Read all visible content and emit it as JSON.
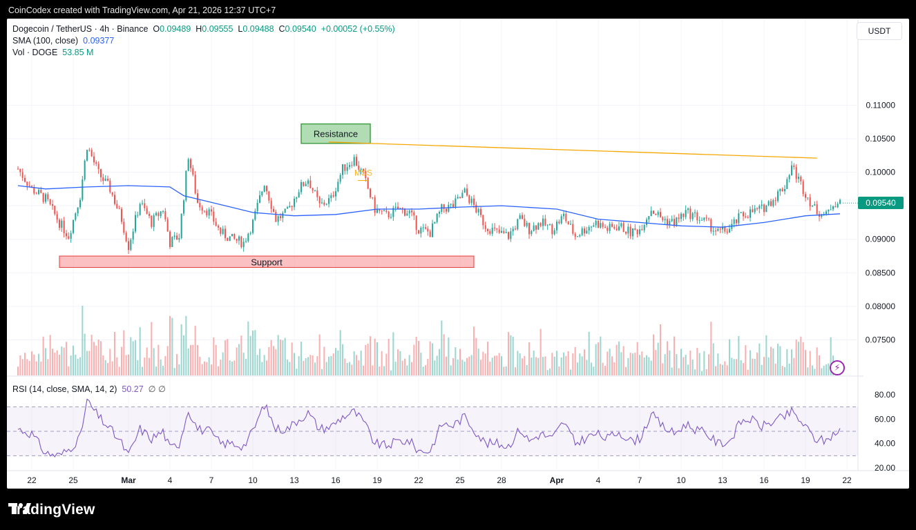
{
  "caption": "CoinCodex created with TradingView.com, Apr 21, 2026 12:37 UTC+7",
  "legend": {
    "symbol": "Dogecoin / TetherUS · 4h · Binance",
    "o_label": "O",
    "o": "0.09489",
    "h_label": "H",
    "h": "0.09555",
    "l_label": "L",
    "l": "0.09488",
    "c_label": "C",
    "c": "0.09540",
    "change": "+0.00052 (+0.55%)",
    "sma_label": "SMA (100, close)",
    "sma_value": "0.09377",
    "vol_label": "Vol · DOGE",
    "vol_value": "53.85 M",
    "rsi_label": "RSI (14, close, SMA, 14, 2)",
    "rsi_value": "50.27",
    "rsi_icons": "∅ ∅"
  },
  "currency": "USDT",
  "last_price_tag": "0.09540",
  "annotations": {
    "resistance": "Resistance",
    "support": "Support",
    "mss": "MSS"
  },
  "footer": {
    "brand": "TradingView"
  },
  "icons": {
    "bolt": "lightning-icon",
    "logo": "tradingview-logo-icon"
  },
  "colors": {
    "up": "#26a69a",
    "down": "#ef5350",
    "sma": "#2962ff",
    "rsi": "#7e57c2",
    "resistance_line": "#f7a600",
    "resistance_box": "#a5d6a7",
    "support_box": "#f8a5a8"
  },
  "chart_data": [
    {
      "type": "candlestick",
      "title": "Dogecoin / TetherUS · 4h · Binance",
      "y_axis": {
        "ticks": [
          0.075,
          0.08,
          0.085,
          0.09,
          0.095,
          0.1,
          0.105,
          0.11
        ],
        "tick_labels": [
          "0.07500",
          "0.08000",
          "0.08500",
          "0.09000",
          "0.09500",
          "0.10000",
          "0.10500",
          "0.11000"
        ],
        "range": [
          0.0732,
          0.1158
        ]
      },
      "x_axis": {
        "tick_labels": [
          "22",
          "25",
          "Mar",
          "4",
          "7",
          "10",
          "13",
          "16",
          "19",
          "22",
          "25",
          "28",
          "Apr",
          "4",
          "7",
          "10",
          "13",
          "16",
          "19",
          "22"
        ],
        "tick_dates": [
          "Feb 22",
          "Feb 25",
          "Mar 1",
          "Mar 4",
          "Mar 7",
          "Mar 10",
          "Mar 13",
          "Mar 16",
          "Mar 19",
          "Mar 22",
          "Mar 25",
          "Mar 28",
          "Apr 1",
          "Apr 4",
          "Apr 7",
          "Apr 10",
          "Apr 13",
          "Apr 16",
          "Apr 19",
          "Apr 22"
        ]
      },
      "close_path": [
        [
          "Feb 21 00:00",
          0.1005
        ],
        [
          "Feb 22 00:00",
          0.0975
        ],
        [
          "Feb 23 00:00",
          0.096
        ],
        [
          "Feb 24 00:00",
          0.0925
        ],
        [
          "Feb 24 16:00",
          0.0905
        ],
        [
          "Feb 25 12:00",
          0.0965
        ],
        [
          "Feb 26 00:00",
          0.104
        ],
        [
          "Feb 26 20:00",
          0.0998
        ],
        [
          "Feb 27 16:00",
          0.0975
        ],
        [
          "Feb 28 12:00",
          0.093
        ],
        [
          "Mar 1 00:00",
          0.089
        ],
        [
          "Mar 1 20:00",
          0.0955
        ],
        [
          "Mar 2 16:00",
          0.0925
        ],
        [
          "Mar 3 12:00",
          0.0945
        ],
        [
          "Mar 4 00:00",
          0.0895
        ],
        [
          "Mar 4 16:00",
          0.0905
        ],
        [
          "Mar 5 08:00",
          0.1025
        ],
        [
          "Mar 6 00:00",
          0.0955
        ],
        [
          "Mar 6 20:00",
          0.094
        ],
        [
          "Mar 7 16:00",
          0.091
        ],
        [
          "Mar 8 12:00",
          0.09
        ],
        [
          "Mar 9 08:00",
          0.0895
        ],
        [
          "Mar 10 00:00",
          0.0925
        ],
        [
          "Mar 10 20:00",
          0.0985
        ],
        [
          "Mar 11 16:00",
          0.093
        ],
        [
          "Mar 12 12:00",
          0.094
        ],
        [
          "Mar 13 08:00",
          0.0975
        ],
        [
          "Mar 14 00:00",
          0.099
        ],
        [
          "Mar 14 20:00",
          0.095
        ],
        [
          "Mar 15 16:00",
          0.096
        ],
        [
          "Mar 16 12:00",
          0.1005
        ],
        [
          "Mar 17 08:00",
          0.102
        ],
        [
          "Mar 18 00:00",
          0.0995
        ],
        [
          "Mar 18 20:00",
          0.0945
        ],
        [
          "Mar 19 16:00",
          0.0935
        ],
        [
          "Mar 20 12:00",
          0.0945
        ],
        [
          "Mar 21 08:00",
          0.094
        ],
        [
          "Mar 22 00:00",
          0.0915
        ],
        [
          "Mar 22 20:00",
          0.091
        ],
        [
          "Mar 23 16:00",
          0.0945
        ],
        [
          "Mar 24 12:00",
          0.095
        ],
        [
          "Mar 25 08:00",
          0.097
        ],
        [
          "Mar 26 00:00",
          0.095
        ],
        [
          "Mar 26 20:00",
          0.092
        ],
        [
          "Mar 27 16:00",
          0.091
        ],
        [
          "Mar 28 12:00",
          0.0905
        ],
        [
          "Mar 29 08:00",
          0.093
        ],
        [
          "Mar 30 00:00",
          0.0915
        ],
        [
          "Mar 30 20:00",
          0.0925
        ],
        [
          "Mar 31 16:00",
          0.0915
        ],
        [
          "Apr 1 12:00",
          0.0935
        ],
        [
          "Apr 2 08:00",
          0.0905
        ],
        [
          "Apr 3 00:00",
          0.0915
        ],
        [
          "Apr 3 20:00",
          0.0925
        ],
        [
          "Apr 4 16:00",
          0.0915
        ],
        [
          "Apr 5 12:00",
          0.092
        ],
        [
          "Apr 6 08:00",
          0.091
        ],
        [
          "Apr 7 00:00",
          0.0915
        ],
        [
          "Apr 7 20:00",
          0.0945
        ],
        [
          "Apr 8 16:00",
          0.093
        ],
        [
          "Apr 9 12:00",
          0.0925
        ],
        [
          "Apr 10 08:00",
          0.094
        ],
        [
          "Apr 11 00:00",
          0.0935
        ],
        [
          "Apr 11 20:00",
          0.0925
        ],
        [
          "Apr 12 16:00",
          0.091
        ],
        [
          "Apr 13 12:00",
          0.0915
        ],
        [
          "Apr 14 08:00",
          0.0935
        ],
        [
          "Apr 15 00:00",
          0.094
        ],
        [
          "Apr 15 20:00",
          0.0945
        ],
        [
          "Apr 16 16:00",
          0.096
        ],
        [
          "Apr 17 12:00",
          0.098
        ],
        [
          "Apr 18 00:00",
          0.101
        ],
        [
          "Apr 18 20:00",
          0.0975
        ],
        [
          "Apr 19 16:00",
          0.0945
        ],
        [
          "Apr 20 12:00",
          0.0935
        ],
        [
          "Apr 21 00:00",
          0.0955
        ],
        [
          "Apr 21 12:00",
          0.0954
        ]
      ],
      "sma_100": [
        [
          "Feb 21 00:00",
          0.098
        ],
        [
          "Feb 23 00:00",
          0.0975
        ],
        [
          "Feb 26 00:00",
          0.0978
        ],
        [
          "Mar 1 00:00",
          0.098
        ],
        [
          "Mar 4 00:00",
          0.0978
        ],
        [
          "Mar 5 00:00",
          0.0965
        ],
        [
          "Mar 7 00:00",
          0.0955
        ],
        [
          "Mar 10 00:00",
          0.094
        ],
        [
          "Mar 13 00:00",
          0.0935
        ],
        [
          "Mar 16 00:00",
          0.0937
        ],
        [
          "Mar 19 00:00",
          0.0945
        ],
        [
          "Mar 22 00:00",
          0.0945
        ],
        [
          "Mar 25 00:00",
          0.0948
        ],
        [
          "Mar 28 00:00",
          0.095
        ],
        [
          "Apr 1 00:00",
          0.0945
        ],
        [
          "Apr 4 00:00",
          0.093
        ],
        [
          "Apr 7 00:00",
          0.0925
        ],
        [
          "Apr 10 00:00",
          0.092
        ],
        [
          "Apr 13 00:00",
          0.0918
        ],
        [
          "Apr 16 00:00",
          0.0925
        ],
        [
          "Apr 19 00:00",
          0.0935
        ],
        [
          "Apr 21 12:00",
          0.0938
        ]
      ],
      "resistance_line": {
        "from": [
          "Mar 15 12:00",
          0.1045
        ],
        "to": [
          "Apr 19 20:00",
          0.1021
        ]
      },
      "resistance_zone": {
        "from": "Mar 13 12:00",
        "to": "Mar 18 12:00",
        "low": 0.1043,
        "high": 0.1072
      },
      "support_zone": {
        "from": "Feb 24 00:00",
        "to": "Mar 26 00:00",
        "low": 0.0858,
        "high": 0.0875
      },
      "volume": {
        "unit": "M DOGE",
        "last": 53.85
      }
    },
    {
      "type": "line",
      "title": "RSI (14, close, SMA, 14, 2)",
      "y_axis": {
        "tick_labels": [
          "20.00",
          "40.00",
          "60.00",
          "80.00"
        ],
        "range": [
          20,
          80
        ],
        "bands": {
          "upper": 70,
          "middle": 50,
          "lower": 30
        }
      },
      "values": [
        [
          "Feb 21 00:00",
          52
        ],
        [
          "Feb 22 00:00",
          48
        ],
        [
          "Feb 23 00:00",
          32
        ],
        [
          "Feb 24 00:00",
          30
        ],
        [
          "Feb 24 16:00",
          35
        ],
        [
          "Feb 25 12:00",
          45
        ],
        [
          "Feb 26 00:00",
          75
        ],
        [
          "Feb 26 20:00",
          62
        ],
        [
          "Feb 27 16:00",
          52
        ],
        [
          "Feb 28 12:00",
          40
        ],
        [
          "Mar 1 00:00",
          30
        ],
        [
          "Mar 1 20:00",
          52
        ],
        [
          "Mar 2 16:00",
          44
        ],
        [
          "Mar 3 12:00",
          50
        ],
        [
          "Mar 4 00:00",
          36
        ],
        [
          "Mar 4 16:00",
          40
        ],
        [
          "Mar 5 08:00",
          68
        ],
        [
          "Mar 6 00:00",
          52
        ],
        [
          "Mar 6 20:00",
          50
        ],
        [
          "Mar 7 16:00",
          40
        ],
        [
          "Mar 8 12:00",
          40
        ],
        [
          "Mar 9 08:00",
          38
        ],
        [
          "Mar 10 00:00",
          50
        ],
        [
          "Mar 10 20:00",
          72
        ],
        [
          "Mar 11 16:00",
          52
        ],
        [
          "Mar 12 12:00",
          52
        ],
        [
          "Mar 13 08:00",
          60
        ],
        [
          "Mar 14 00:00",
          65
        ],
        [
          "Mar 14 20:00",
          52
        ],
        [
          "Mar 15 16:00",
          54
        ],
        [
          "Mar 16 12:00",
          62
        ],
        [
          "Mar 17 08:00",
          66
        ],
        [
          "Mar 18 00:00",
          58
        ],
        [
          "Mar 18 20:00",
          40
        ],
        [
          "Mar 19 16:00",
          38
        ],
        [
          "Mar 20 12:00",
          42
        ],
        [
          "Mar 21 08:00",
          42
        ],
        [
          "Mar 22 00:00",
          34
        ],
        [
          "Mar 22 20:00",
          34
        ],
        [
          "Mar 23 16:00",
          56
        ],
        [
          "Mar 24 12:00",
          55
        ],
        [
          "Mar 25 08:00",
          62
        ],
        [
          "Mar 26 00:00",
          52
        ],
        [
          "Mar 26 20:00",
          40
        ],
        [
          "Mar 27 16:00",
          40
        ],
        [
          "Mar 28 12:00",
          38
        ],
        [
          "Mar 29 08:00",
          52
        ],
        [
          "Mar 30 00:00",
          42
        ],
        [
          "Mar 30 20:00",
          48
        ],
        [
          "Mar 31 16:00",
          44
        ],
        [
          "Apr 1 12:00",
          58
        ],
        [
          "Apr 2 08:00",
          40
        ],
        [
          "Apr 3 00:00",
          44
        ],
        [
          "Apr 3 20:00",
          48
        ],
        [
          "Apr 4 16:00",
          44
        ],
        [
          "Apr 5 12:00",
          50
        ],
        [
          "Apr 6 08:00",
          42
        ],
        [
          "Apr 7 00:00",
          44
        ],
        [
          "Apr 7 20:00",
          64
        ],
        [
          "Apr 8 16:00",
          54
        ],
        [
          "Apr 9 12:00",
          48
        ],
        [
          "Apr 10 08:00",
          56
        ],
        [
          "Apr 11 00:00",
          52
        ],
        [
          "Apr 11 20:00",
          48
        ],
        [
          "Apr 12 16:00",
          40
        ],
        [
          "Apr 13 12:00",
          42
        ],
        [
          "Apr 14 08:00",
          58
        ],
        [
          "Apr 15 00:00",
          60
        ],
        [
          "Apr 15 20:00",
          54
        ],
        [
          "Apr 16 16:00",
          58
        ],
        [
          "Apr 17 12:00",
          62
        ],
        [
          "Apr 18 00:00",
          66
        ],
        [
          "Apr 18 20:00",
          56
        ],
        [
          "Apr 19 16:00",
          44
        ],
        [
          "Apr 20 12:00",
          42
        ],
        [
          "Apr 21 00:00",
          48
        ],
        [
          "Apr 21 12:00",
          50.27
        ]
      ]
    }
  ]
}
